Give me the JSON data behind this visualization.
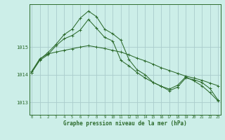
{
  "xlabel": "Graphe pression niveau de la mer (hPa)",
  "background_color": "#cceee8",
  "grid_color": "#aacccc",
  "line_color": "#2d6b2d",
  "x_ticks": [
    0,
    1,
    2,
    3,
    4,
    5,
    6,
    7,
    8,
    9,
    10,
    11,
    12,
    13,
    14,
    15,
    16,
    17,
    18,
    19,
    20,
    21,
    22,
    23
  ],
  "y_ticks": [
    1013,
    1014,
    1015
  ],
  "ylim": [
    1012.55,
    1016.55
  ],
  "xlim": [
    -0.3,
    23.3
  ],
  "series1": [
    1014.12,
    1014.58,
    1014.75,
    1014.82,
    1014.88,
    1014.94,
    1015.0,
    1015.05,
    1015.0,
    1014.95,
    1014.88,
    1014.82,
    1014.72,
    1014.6,
    1014.5,
    1014.38,
    1014.25,
    1014.15,
    1014.05,
    1013.95,
    1013.88,
    1013.8,
    1013.7,
    1013.6
  ],
  "series2": [
    1014.08,
    1014.55,
    1014.8,
    1015.1,
    1015.45,
    1015.65,
    1016.05,
    1016.3,
    1016.1,
    1015.65,
    1015.48,
    1015.25,
    1014.55,
    1014.18,
    1014.0,
    1013.72,
    1013.58,
    1013.42,
    1013.55,
    1013.88,
    1013.82,
    1013.72,
    1013.5,
    1013.08
  ],
  "series3": [
    1014.08,
    1014.52,
    1014.72,
    1015.05,
    1015.3,
    1015.42,
    1015.62,
    1016.0,
    1015.68,
    1015.35,
    1015.22,
    1014.52,
    1014.32,
    1014.08,
    1013.88,
    1013.72,
    1013.58,
    1013.48,
    1013.62,
    1013.92,
    1013.78,
    1013.6,
    1013.35,
    1013.05
  ]
}
